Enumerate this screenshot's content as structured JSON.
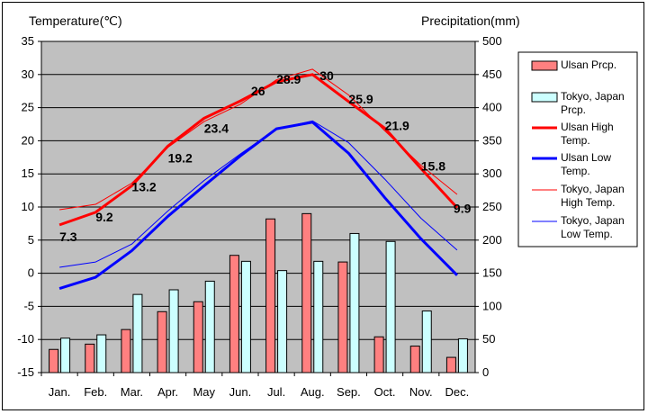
{
  "chart_data": {
    "type": "bar+line",
    "categories": [
      "Jan.",
      "Feb.",
      "Mar.",
      "Apr.",
      "May",
      "Jun.",
      "Jul.",
      "Aug.",
      "Sep.",
      "Oct.",
      "Nov.",
      "Dec."
    ],
    "left_axis": {
      "label": "Temperature(℃)",
      "min": -15,
      "max": 35,
      "step": 5
    },
    "right_axis": {
      "label": "Precipitation(mm)",
      "min": 0,
      "max": 500,
      "step": 50
    },
    "bar_series": [
      {
        "name": "Ulsan Prcp.",
        "color": "#ff8080",
        "values": [
          35,
          43,
          65,
          92,
          107,
          177,
          232,
          240,
          167,
          54,
          40,
          23
        ]
      },
      {
        "name": "Tokyo, Japan Prcp.",
        "color": "#ccffff",
        "values": [
          52,
          57,
          118,
          125,
          138,
          168,
          154,
          168,
          210,
          198,
          93,
          51
        ]
      }
    ],
    "line_series": [
      {
        "name": "Ulsan High Temp.",
        "color": "#ff0000",
        "width": 3,
        "values": [
          7.3,
          9.2,
          13.2,
          19.2,
          23.4,
          26,
          28.9,
          30,
          25.9,
          21.9,
          15.8,
          9.9
        ],
        "data_labels": [
          "7.3",
          "9.2",
          "13.2",
          "19.2",
          "23.4",
          "26",
          "28.9",
          "30",
          "25.9",
          "21.9",
          "15.8",
          "9.9"
        ]
      },
      {
        "name": "Ulsan Low Temp.",
        "color": "#0000ff",
        "width": 3,
        "values": [
          -2.3,
          -0.6,
          3.4,
          8.6,
          13.2,
          17.7,
          21.8,
          22.8,
          18.1,
          11.4,
          5.2,
          -0.3
        ]
      },
      {
        "name": "Tokyo, Japan High Temp.",
        "color": "#ff0000",
        "width": 1,
        "values": [
          9.6,
          10.4,
          13.6,
          19.0,
          22.9,
          25.5,
          29.2,
          30.8,
          26.9,
          21.5,
          16.3,
          11.9
        ]
      },
      {
        "name": "Tokyo, Japan Low Temp.",
        "color": "#0000ff",
        "width": 1,
        "values": [
          0.9,
          1.7,
          4.4,
          9.4,
          14.0,
          18.0,
          21.8,
          23.0,
          19.7,
          14.2,
          8.3,
          3.5
        ]
      }
    ],
    "legend": {
      "placement": "right",
      "entries": [
        {
          "text": "Ulsan Prcp."
        },
        {
          "text": "Tokyo, Japan Prcp."
        },
        {
          "text": "Ulsan High Temp."
        },
        {
          "text": "Ulsan Low Temp."
        },
        {
          "text": "Tokyo, Japan High Temp."
        },
        {
          "text": "Tokyo, Japan Low Temp."
        }
      ]
    },
    "plot_background": "#c0c0c0",
    "grid": true
  }
}
